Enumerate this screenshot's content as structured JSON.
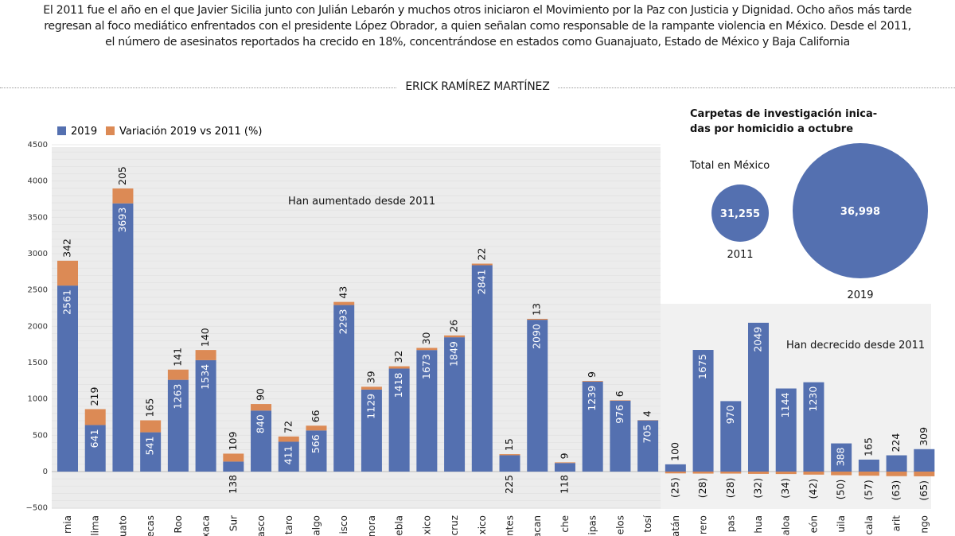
{
  "intro": [
    "El 2011 fue el año en el que Javier Sicilia junto con Julián Lebarón y muchos otros iniciaron el Movimiento por la Paz con Justicia y Dignidad. Ocho años más tarde",
    "regresan al foco mediático enfrentados con el presidente López Obrador, a quien señalan como responsable de la rampante violencia en México. Desde el 2011,",
    "el número de asesinatos reportados ha crecido en 18%, concentrándose en estados como Guanajuato, Estado de México y Baja California"
  ],
  "author": "ERICK RAMÍREZ MARTÍNEZ",
  "colors": {
    "series_2019": "#5470b0",
    "variation": "#dc8a55",
    "plot_bg": "#ececec"
  },
  "chart_data": [
    {
      "type": "bar",
      "stacked": true,
      "legend": [
        "2019",
        "Variación 2019 vs 2011 (%)"
      ],
      "legend_placement": "top-left",
      "ylim": [
        -500,
        4500
      ],
      "yticks": [
        -500,
        0,
        500,
        1000,
        1500,
        2000,
        2500,
        3000,
        3500,
        4000,
        4500
      ],
      "grid": true,
      "annotations": {
        "increase": "Han aumentado desde 2011",
        "decrease": "Han decrecido desde 2011"
      },
      "categories": [
        "rnia",
        "lima",
        "uato",
        "ecas",
        "Roo",
        "xaca",
        "Sur",
        "asco",
        "taro",
        "algo",
        "isco",
        "nora",
        "ebla",
        "xico",
        "cruz",
        "xico",
        "ntes",
        "acan",
        "che",
        "ipas",
        "elos",
        "tosí",
        "atán",
        "rero",
        "pas",
        "hua",
        "aloa",
        "eón",
        "uila",
        "cala",
        "arit",
        "ngo"
      ],
      "series": [
        {
          "name": "2019",
          "values": [
            2561,
            641,
            3693,
            541,
            1263,
            1534,
            138,
            840,
            411,
            566,
            2293,
            1129,
            1418,
            1673,
            1849,
            2841,
            225,
            2090,
            118,
            1239,
            976,
            705,
            100,
            1675,
            970,
            2049,
            1144,
            1230,
            388,
            165,
            224,
            309
          ]
        },
        {
          "name": "Variación 2019 vs 2011 (%)",
          "values": [
            342,
            219,
            205,
            165,
            141,
            140,
            109,
            90,
            72,
            66,
            43,
            39,
            32,
            30,
            26,
            22,
            15,
            13,
            9,
            9,
            6,
            4,
            -25,
            -28,
            -28,
            -32,
            -34,
            -42,
            -50,
            -57,
            -63,
            -65
          ]
        }
      ]
    },
    {
      "type": "bubble",
      "title": "Carpetas de investigación inica-\ndas por homicidio a octubre",
      "subtitle": "Total en México",
      "categories": [
        "2011",
        "2019"
      ],
      "values": [
        31255,
        36998
      ],
      "labels": [
        "31,255",
        "36,998"
      ]
    }
  ]
}
